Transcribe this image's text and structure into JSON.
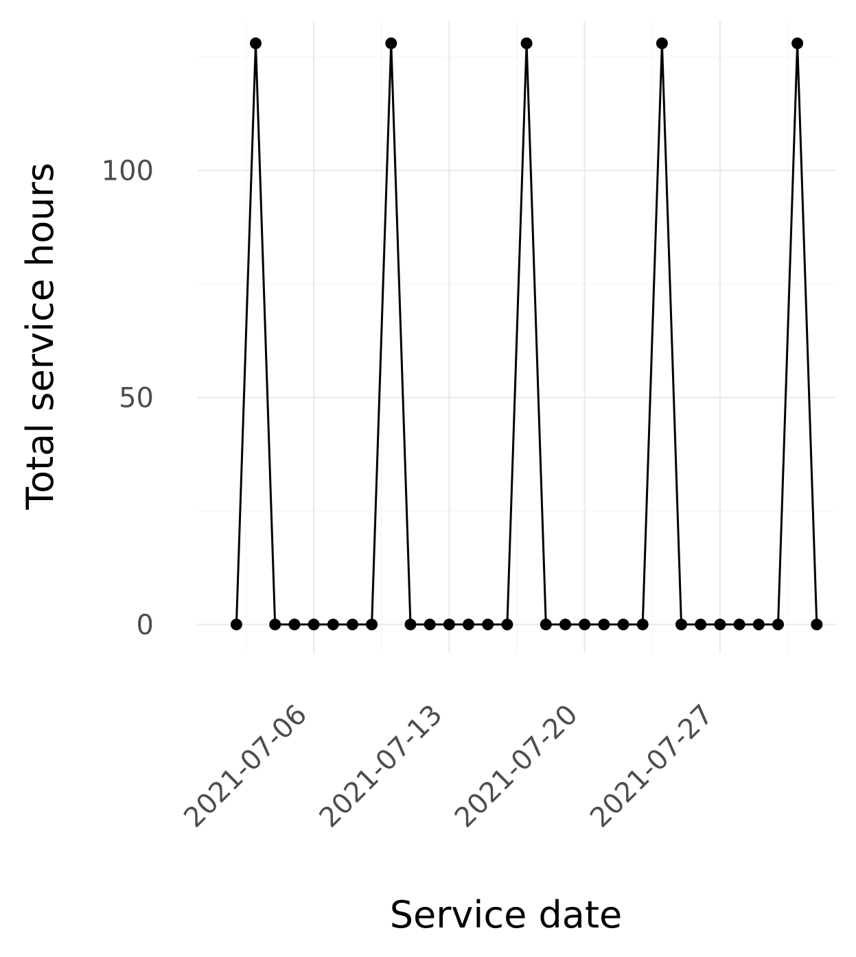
{
  "chart_data": {
    "type": "line",
    "xlabel": "Service date",
    "ylabel": "Total service hours",
    "x_axis_type": "date",
    "x_ticks": [
      "2021-07-06",
      "2021-07-13",
      "2021-07-20",
      "2021-07-27"
    ],
    "y_ticks": [
      0,
      50,
      100
    ],
    "xlim": [
      "2021-06-30",
      "2021-08-02"
    ],
    "ylim": [
      -6.3,
      133
    ],
    "grid": true,
    "legend": "none",
    "colors": {
      "line": "#000000",
      "point": "#000000",
      "grid": "#ebebeb",
      "tick_text": "#4d4d4d"
    },
    "x": [
      "2021-07-02",
      "2021-07-03",
      "2021-07-04",
      "2021-07-05",
      "2021-07-06",
      "2021-07-07",
      "2021-07-08",
      "2021-07-09",
      "2021-07-10",
      "2021-07-11",
      "2021-07-12",
      "2021-07-13",
      "2021-07-14",
      "2021-07-15",
      "2021-07-16",
      "2021-07-17",
      "2021-07-18",
      "2021-07-19",
      "2021-07-20",
      "2021-07-21",
      "2021-07-22",
      "2021-07-23",
      "2021-07-24",
      "2021-07-25",
      "2021-07-26",
      "2021-07-27",
      "2021-07-28",
      "2021-07-29",
      "2021-07-30",
      "2021-07-31",
      "2021-08-01"
    ],
    "y": [
      0,
      128,
      0,
      0,
      0,
      0,
      0,
      0,
      128,
      0,
      0,
      0,
      0,
      0,
      0,
      128,
      0,
      0,
      0,
      0,
      0,
      0,
      128,
      0,
      0,
      0,
      0,
      0,
      0,
      128,
      0
    ]
  }
}
